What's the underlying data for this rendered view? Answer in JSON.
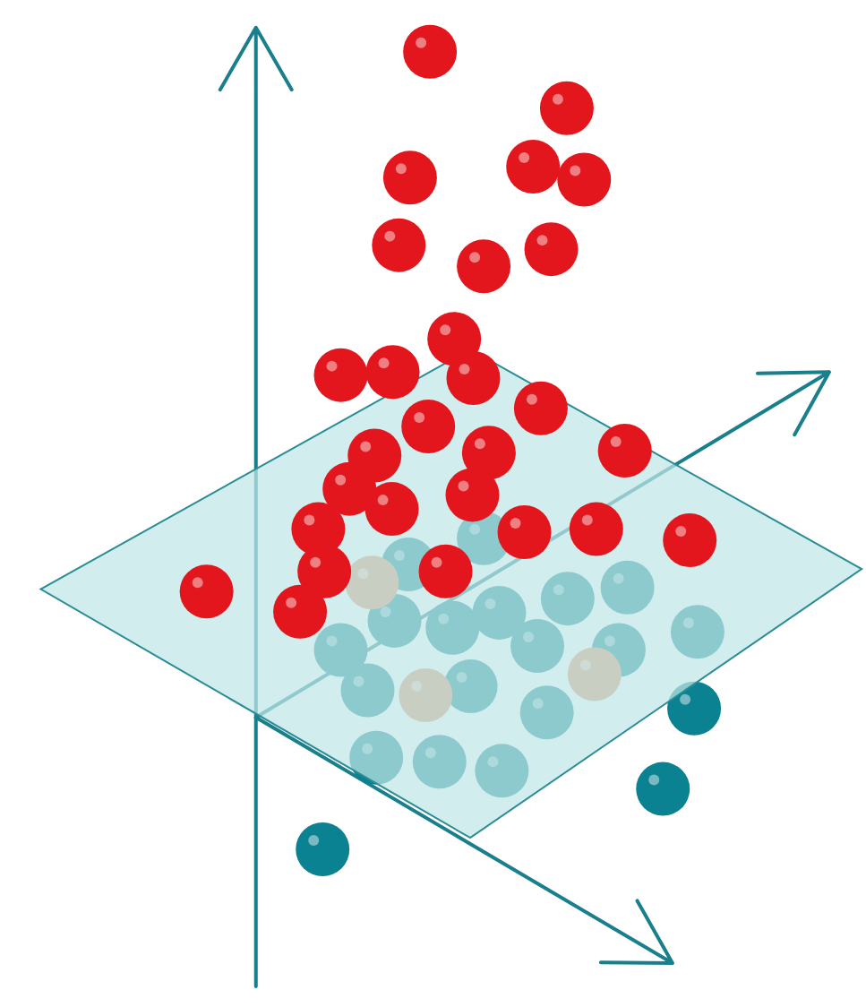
{
  "chart_data": {
    "type": "scatter",
    "xlim": [
      0,
      100
    ],
    "ylim": [
      0,
      100
    ],
    "tick_labels": false,
    "series": [
      {
        "color": "#0b8291",
        "x": [
          45.5,
          57.6,
          65.5,
          80.1,
          76.5,
          37.2,
          55.8,
          72.4,
          39.3,
          52.2,
          62.0,
          71.4,
          80.5,
          42.4,
          54.3,
          63.1,
          43.4,
          50.7,
          57.9,
          47.1
        ],
        "values": [
          38.4,
          39.2,
          40.6,
          29.7,
          21.7,
          15.7,
          46.6,
          41.7,
          35.5,
          37.7,
          35.9,
          35.5,
          37.3,
          31.5,
          31.9,
          29.3,
          24.8,
          24.4,
          23.5,
          44.0
        ]
      },
      {
        "color": "#e2906a",
        "x": [
          42.9,
          49.1,
          68.6
        ],
        "values": [
          42.2,
          31.0,
          33.1
        ]
      },
      {
        "color": "#e3161d",
        "x": [
          49.6,
          65.4,
          47.3,
          61.5,
          67.4,
          46.0,
          55.8,
          63.6,
          52.4,
          39.3,
          45.3,
          54.6,
          62.4,
          49.4,
          72.1,
          43.2,
          56.4,
          40.3,
          45.2,
          54.5,
          36.7,
          60.5,
          68.8,
          79.6,
          37.4,
          51.4,
          23.8,
          34.6
        ],
        "values": [
          94.9,
          89.3,
          82.4,
          83.5,
          82.2,
          75.7,
          73.6,
          75.3,
          66.4,
          62.8,
          63.1,
          62.5,
          59.5,
          57.7,
          55.3,
          54.8,
          55.1,
          51.5,
          49.5,
          50.9,
          47.5,
          47.2,
          47.5,
          46.4,
          43.3,
          43.3,
          41.3,
          39.3
        ]
      }
    ]
  }
}
